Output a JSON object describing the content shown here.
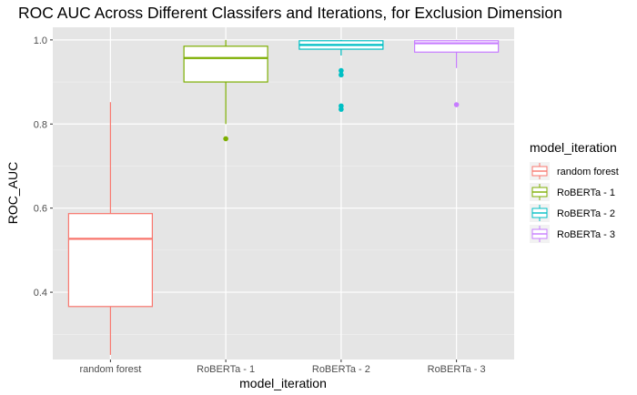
{
  "chart_data": {
    "type": "boxplot",
    "title": "ROC AUC Across Different Classifers and Iterations, for Exclusion Dimension",
    "xlabel": "model_iteration",
    "ylabel": "ROC_AUC",
    "ylim": [
      0.24,
      1.03
    ],
    "yticks": [
      "0.4",
      "0.6",
      "0.8",
      "1.0"
    ],
    "ytick_values": [
      0.4,
      0.6,
      0.8,
      1.0
    ],
    "grid": true,
    "panel_background": "#e5e5e5",
    "legend": {
      "title": "model_iteration",
      "position": "right"
    },
    "categories": [
      "random forest",
      "RoBERTa - 1",
      "RoBERTa - 2",
      "RoBERTa - 3"
    ],
    "series": [
      {
        "name": "random forest",
        "color": "#F8766D",
        "whisker_low": 0.251,
        "q1": 0.366,
        "median": 0.527,
        "q3": 0.587,
        "whisker_high": 0.852,
        "outliers": []
      },
      {
        "name": "RoBERTa - 1",
        "color": "#7CAE00",
        "whisker_low": 0.8,
        "q1": 0.9,
        "median": 0.957,
        "q3": 0.985,
        "whisker_high": 1.0,
        "outliers": [
          0.765
        ]
      },
      {
        "name": "RoBERTa - 2",
        "color": "#00BFC4",
        "whisker_low": 0.963,
        "q1": 0.978,
        "median": 0.988,
        "q3": 0.998,
        "whisker_high": 1.0,
        "outliers": [
          0.927,
          0.917,
          0.843,
          0.835
        ]
      },
      {
        "name": "RoBERTa - 3",
        "color": "#C77CFF",
        "whisker_low": 0.933,
        "q1": 0.971,
        "median": 0.992,
        "q3": 0.998,
        "whisker_high": 1.0,
        "outliers": [
          0.846
        ]
      }
    ]
  }
}
